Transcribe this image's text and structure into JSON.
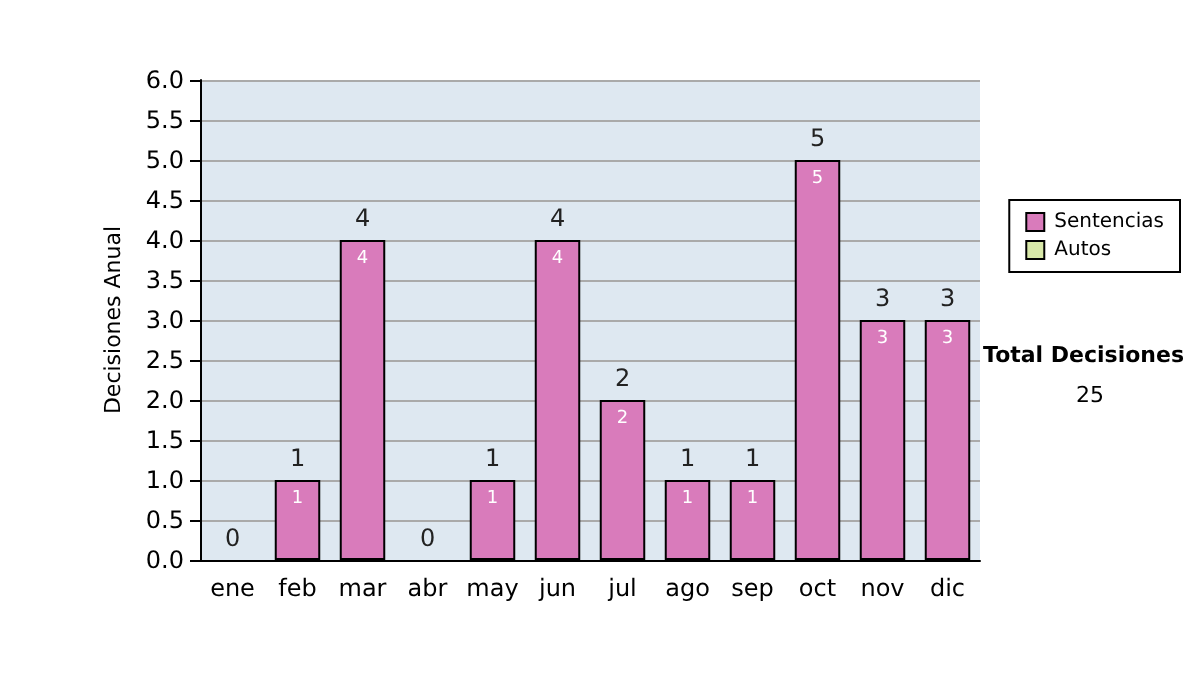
{
  "chart_data": {
    "type": "bar",
    "ylabel": "Decisiones Anual",
    "categories": [
      "ene",
      "feb",
      "mar",
      "abr",
      "may",
      "jun",
      "jul",
      "ago",
      "sep",
      "oct",
      "nov",
      "dic"
    ],
    "series": [
      {
        "name": "Sentencias",
        "color": "#d97bbb",
        "values": [
          0,
          1,
          4,
          0,
          1,
          4,
          2,
          1,
          1,
          5,
          3,
          3
        ],
        "value_labels": [
          null,
          "1",
          "4",
          null,
          "1",
          "4",
          "2",
          "1",
          "1",
          "5",
          "3",
          "3"
        ]
      },
      {
        "name": "Autos",
        "color": "#d8e8a8",
        "values": [
          0,
          0,
          0,
          0,
          0,
          0,
          0,
          0,
          0,
          0,
          0,
          0
        ]
      }
    ],
    "stacked": true,
    "totals": [
      "0",
      "1",
      "4",
      "0",
      "1",
      "4",
      "2",
      "1",
      "1",
      "5",
      "3",
      "3"
    ],
    "ylim": [
      0,
      6
    ],
    "yticks": [
      {
        "value": 0,
        "label": "0.0"
      },
      {
        "value": 0.5,
        "label": "0.5"
      },
      {
        "value": 1,
        "label": "1.0"
      },
      {
        "value": 1.5,
        "label": "1.5"
      },
      {
        "value": 2,
        "label": "2.0"
      },
      {
        "value": 2.5,
        "label": "2.5"
      },
      {
        "value": 3,
        "label": "3.0"
      },
      {
        "value": 3.5,
        "label": "3.5"
      },
      {
        "value": 4,
        "label": "4.0"
      },
      {
        "value": 4.5,
        "label": "4.5"
      },
      {
        "value": 5,
        "label": "5.0"
      },
      {
        "value": 5.5,
        "label": "5.5"
      },
      {
        "value": 6,
        "label": "6.0"
      }
    ],
    "grid": "y",
    "legend": "right",
    "annotations": [
      "Total Decisiones",
      "25"
    ]
  }
}
